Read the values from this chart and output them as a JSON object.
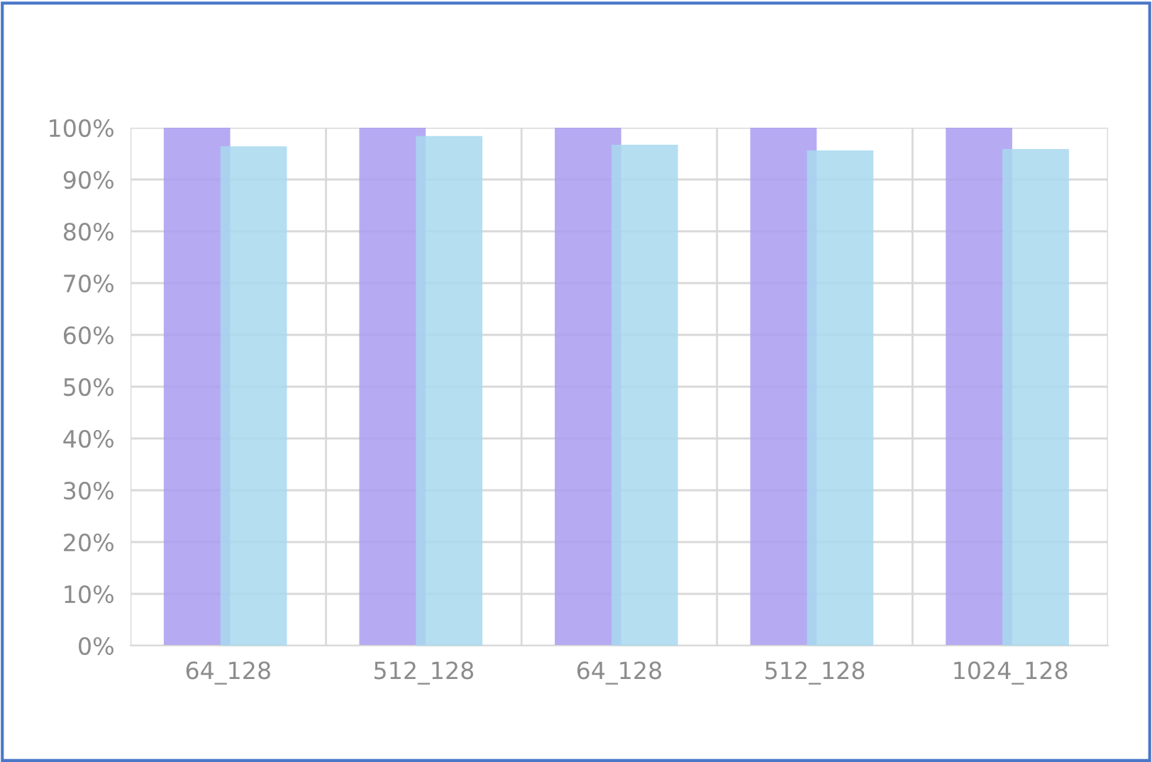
{
  "chart_data": {
    "type": "bar",
    "categories": [
      "64_128",
      "512_128",
      "64_128",
      "512_128",
      "1024_128"
    ],
    "series": [
      {
        "color": "#a99cf0",
        "values": [
          100,
          100,
          100,
          100,
          100
        ]
      },
      {
        "color": "#a8d8ee",
        "values": [
          96.4,
          98.4,
          96.7,
          95.6,
          95.9
        ]
      }
    ],
    "ylim": [
      0,
      100
    ],
    "yticks": [
      {
        "value": 0,
        "label": "0%"
      },
      {
        "value": 10,
        "label": "10%"
      },
      {
        "value": 20,
        "label": "20%"
      },
      {
        "value": 30,
        "label": "30%"
      },
      {
        "value": 40,
        "label": "40%"
      },
      {
        "value": 50,
        "label": "50%"
      },
      {
        "value": 60,
        "label": "60%"
      },
      {
        "value": 70,
        "label": "70%"
      },
      {
        "value": 80,
        "label": "80%"
      },
      {
        "value": 90,
        "label": "90%"
      },
      {
        "value": 100,
        "label": "100%"
      }
    ],
    "grid": true,
    "legend": false
  }
}
